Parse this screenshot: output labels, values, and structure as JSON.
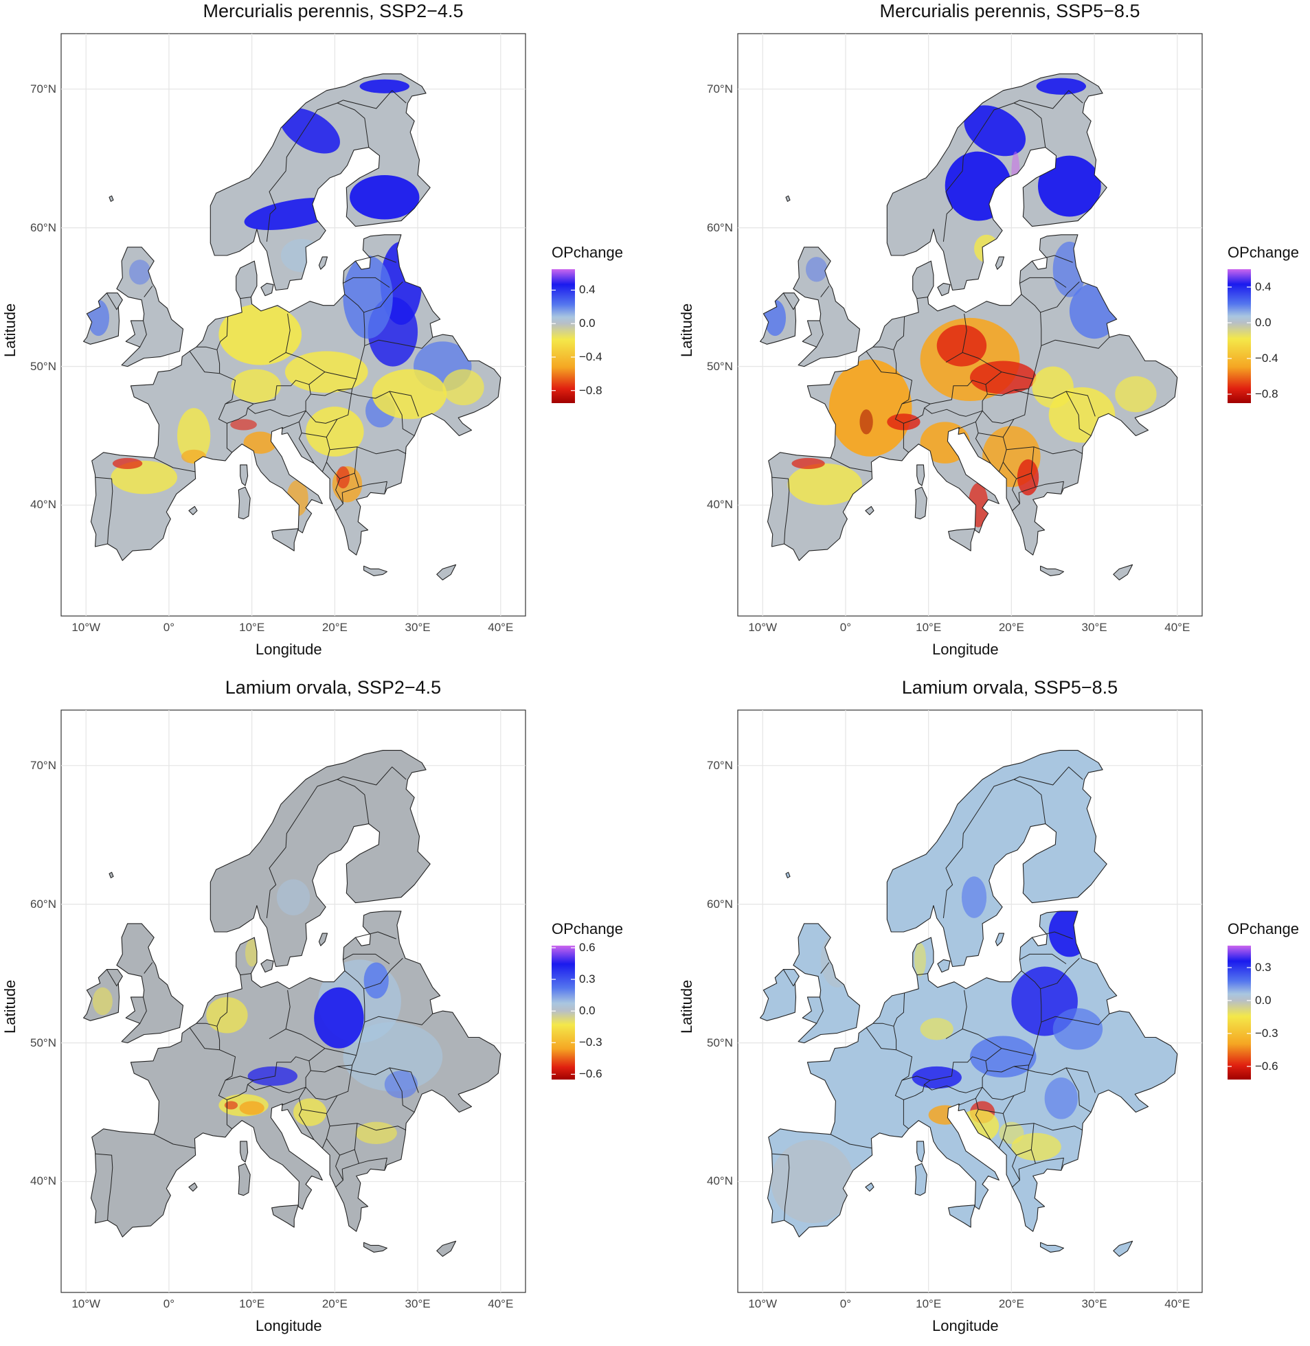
{
  "axes": {
    "xlabel": "Longitude",
    "ylabel": "Latitude",
    "x_ticks": [
      "10°W",
      "0°",
      "10°E",
      "20°E",
      "30°E",
      "40°E"
    ],
    "x_tick_values": [
      -10,
      0,
      10,
      20,
      30,
      40
    ],
    "y_ticks": [
      "70°N",
      "60°N",
      "50°N",
      "40°N"
    ],
    "y_tick_values": [
      70,
      60,
      50,
      40
    ],
    "x_range": [
      -13,
      43
    ],
    "y_range": [
      32,
      74
    ]
  },
  "colors": {
    "purple": "#cc66ee",
    "blue_strong": "#1a1aee",
    "blue_mid": "#5577ee",
    "blue_light": "#a9c6e0",
    "grey": "#b8bfc6",
    "grey_dark": "#aeb3b8",
    "yellow": "#f4e84a",
    "orange": "#f5a623",
    "red": "#e02010",
    "dark_red": "#a00000",
    "border": "#222222",
    "grid": "#e6e6e6"
  },
  "panels": [
    {
      "title": "Mercurialis perennis, SSP2−4.5",
      "legend_title": "OPchange",
      "legend_ticks": [
        "0.4",
        "0.0",
        "−0.4",
        "−0.8"
      ],
      "legend_values": [
        0.4,
        0.0,
        -0.4,
        -0.8
      ],
      "legend_range": [
        -0.95,
        0.65
      ],
      "scheme": "mp245"
    },
    {
      "title": "Mercurialis perennis, SSP5−8.5",
      "legend_title": "OPchange",
      "legend_ticks": [
        "0.4",
        "0.0",
        "−0.4",
        "−0.8"
      ],
      "legend_values": [
        0.4,
        0.0,
        -0.4,
        -0.8
      ],
      "legend_range": [
        -0.9,
        0.6
      ],
      "scheme": "mp585"
    },
    {
      "title": "Lamium orvala, SSP2−4.5",
      "legend_title": "OPchange",
      "legend_ticks": [
        "0.6",
        "0.3",
        "0.0",
        "−0.3",
        "−0.6"
      ],
      "legend_values": [
        0.6,
        0.3,
        0.0,
        -0.3,
        -0.6
      ],
      "legend_range": [
        -0.65,
        0.62
      ],
      "scheme": "lo245"
    },
    {
      "title": "Lamium orvala, SSP5−8.5",
      "legend_title": "OPchange",
      "legend_ticks": [
        "0.3",
        "0.0",
        "−0.3",
        "−0.6"
      ],
      "legend_values": [
        0.3,
        0.0,
        -0.3,
        -0.6
      ],
      "legend_range": [
        -0.72,
        0.5
      ],
      "scheme": "lo585"
    }
  ]
}
